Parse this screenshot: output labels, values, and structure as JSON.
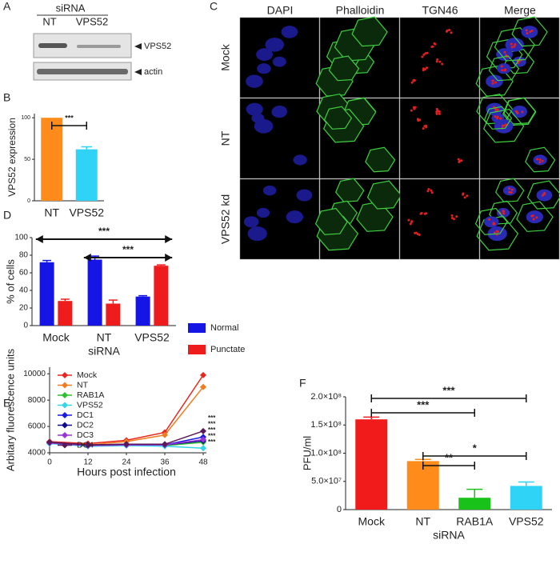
{
  "panel_labels": [
    "A",
    "B",
    "C",
    "D",
    "E",
    "F"
  ],
  "blot": {
    "group_label": "siRNA",
    "lanes": [
      "NT",
      "VPS52"
    ],
    "bands": [
      "VPS52",
      "actin"
    ]
  },
  "microscopy": {
    "columns": [
      "DAPI",
      "Phalloidin",
      "TGN46",
      "Merge"
    ],
    "rows": [
      "Mock",
      "NT",
      "VPS52 kd"
    ]
  },
  "chart_data": [
    {
      "type": "bar",
      "ylabel": "VPS52 expression",
      "categories": [
        "NT",
        "VPS52"
      ],
      "values": [
        100,
        62
      ],
      "errors": [
        null,
        3
      ],
      "colors": [
        "#ff8c1a",
        "#2ed3f5"
      ],
      "ylim": [
        0,
        105
      ],
      "yticks": [
        0,
        50,
        100
      ],
      "annotations": [
        "***"
      ]
    },
    {
      "type": "bar",
      "ylabel": "% of cells",
      "xlabel": "siRNA",
      "categories": [
        "Mock",
        "NT",
        "VPS52"
      ],
      "series": [
        {
          "name": "Normal",
          "color": "#1515e6",
          "values": [
            72,
            75,
            33
          ],
          "errors": [
            2,
            4,
            1
          ]
        },
        {
          "name": "Punctate",
          "color": "#ee1c1c",
          "values": [
            28,
            25,
            68
          ],
          "errors": [
            2,
            4,
            1
          ]
        }
      ],
      "ylim": [
        0,
        100
      ],
      "yticks": [
        0,
        20,
        40,
        60,
        80,
        100
      ],
      "annotations": [
        "***",
        "***"
      ]
    },
    {
      "type": "line",
      "ylabel": "Arbitary fluorescence units",
      "xlabel": "Hours post infection",
      "x": [
        0,
        12,
        24,
        36,
        48
      ],
      "xlim": [
        0,
        48
      ],
      "xticks": [
        0,
        12,
        24,
        36,
        48
      ],
      "ylim": [
        4000,
        10500
      ],
      "yticks": [
        4000,
        6000,
        8000,
        10000
      ],
      "series": [
        {
          "name": "Mock",
          "color": "#e8271e",
          "values": [
            4850,
            4700,
            4950,
            5550,
            9900
          ]
        },
        {
          "name": "NT",
          "color": "#f07c22",
          "values": [
            4800,
            4600,
            4850,
            5350,
            9000
          ]
        },
        {
          "name": "RAB1A",
          "color": "#2ebf2e",
          "values": [
            4750,
            4550,
            4600,
            4550,
            4800
          ]
        },
        {
          "name": "VPS52",
          "color": "#33d6e8",
          "values": [
            4700,
            4500,
            4550,
            4500,
            4350
          ]
        },
        {
          "name": "DC1",
          "color": "#1a1ae0",
          "values": [
            4750,
            4550,
            4600,
            4600,
            5200
          ]
        },
        {
          "name": "DC2",
          "color": "#0d0d8a",
          "values": [
            4800,
            4600,
            4650,
            4600,
            4900
          ]
        },
        {
          "name": "DC3",
          "color": "#9a33d6",
          "values": [
            4750,
            4550,
            4600,
            4600,
            5000
          ]
        },
        {
          "name": "DC4",
          "color": "#5a1a5a",
          "values": [
            4800,
            4600,
            4650,
            4650,
            5650
          ]
        }
      ],
      "annotations": [
        "***",
        "***",
        "***",
        "***",
        "***"
      ]
    },
    {
      "type": "bar",
      "ylabel": "PFU/ml",
      "xlabel": "siRNA",
      "categories": [
        "Mock",
        "NT",
        "RAB1A",
        "VPS52"
      ],
      "values": [
        160000000,
        86000000,
        21000000,
        42000000
      ],
      "errors": [
        4000000,
        3000000,
        15000000,
        7000000
      ],
      "colors": [
        "#f21b1b",
        "#ff8c1a",
        "#19c219",
        "#2ed3f5"
      ],
      "ylim": [
        0,
        200000000
      ],
      "yticks": [
        0,
        {
          "value": 50000000,
          "label": "5.0×10⁷"
        },
        {
          "value": 100000000,
          "label": "1.0×10⁸"
        },
        {
          "value": 150000000,
          "label": "1.5×10⁸"
        },
        {
          "value": 200000000,
          "label": "2.0×10⁸"
        }
      ],
      "annotations": [
        "***",
        "***",
        "*",
        "**"
      ]
    }
  ]
}
